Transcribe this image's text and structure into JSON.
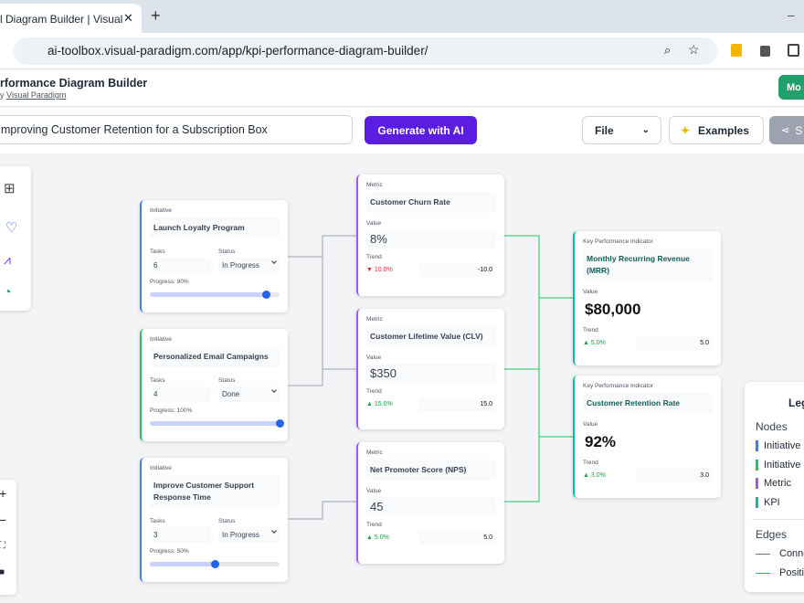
{
  "browser": {
    "tab_title": "l Diagram Builder | Visual",
    "url": "ai-toolbox.visual-paradigm.com/app/kpi-performance-diagram-builder/"
  },
  "header": {
    "title": "rformance Diagram Builder",
    "byline_prefix": "y",
    "byline_link": "Visual Paradigm",
    "cta": "Mo"
  },
  "toolbar": {
    "prompt": "mproving Customer Retention for a Subscription Box",
    "generate": "Generate with AI",
    "file": "File",
    "examples": "Examples",
    "share": "S"
  },
  "initiatives": [
    {
      "label": "Initiative",
      "name": "Launch Loyalty Program",
      "tasks_label": "Tasks",
      "tasks": "6",
      "status_label": "Status",
      "status": "In Progress",
      "progress_label": "Progress: 90%",
      "progress": 90
    },
    {
      "label": "Initiative",
      "name": "Personalized Email Campaigns",
      "tasks_label": "Tasks",
      "tasks": "4",
      "status_label": "Status",
      "status": "Done",
      "progress_label": "Progress: 100%",
      "progress": 100
    },
    {
      "label": "Initiative",
      "name": "Improve Customer Support Response Time",
      "tasks_label": "Tasks",
      "tasks": "3",
      "status_label": "Status",
      "status": "In Progress",
      "progress_label": "Progress: 50%",
      "progress": 50
    }
  ],
  "metrics": [
    {
      "label": "Metric",
      "name": "Customer Churn Rate",
      "value_label": "Value",
      "value": "8%",
      "trend_label": "Trend",
      "trend": "▼ 10.0%",
      "trend_value": "-10.0"
    },
    {
      "label": "Metric",
      "name": "Customer Lifetime Value (CLV)",
      "value_label": "Value",
      "value": "$350",
      "trend_label": "Trend",
      "trend": "▲ 15.0%",
      "trend_value": "15.0"
    },
    {
      "label": "Metric",
      "name": "Net Promoter Score (NPS)",
      "value_label": "Value",
      "value": "45",
      "trend_label": "Trend",
      "trend": "▲ 5.0%",
      "trend_value": "5.0"
    }
  ],
  "kpis": [
    {
      "label": "Key Performance Indicator",
      "name": "Monthly Recurring Revenue (MRR)",
      "value_label": "Value",
      "value": "$80,000",
      "trend_label": "Trend",
      "trend": "▲ 5.0%",
      "trend_value": "5.0"
    },
    {
      "label": "Key Performance Indicator",
      "name": "Customer Retention Rate",
      "value_label": "Value",
      "value": "92%",
      "trend_label": "Trend",
      "trend": "▲ 3.0%",
      "trend_value": "3.0"
    }
  ],
  "legend": {
    "title": "Leg",
    "nodes_heading": "Nodes",
    "nodes": [
      "Initiative",
      "Initiative",
      "Metric",
      "KPI"
    ],
    "edges_heading": "Edges",
    "edges": [
      "Conne",
      "Positi"
    ]
  }
}
